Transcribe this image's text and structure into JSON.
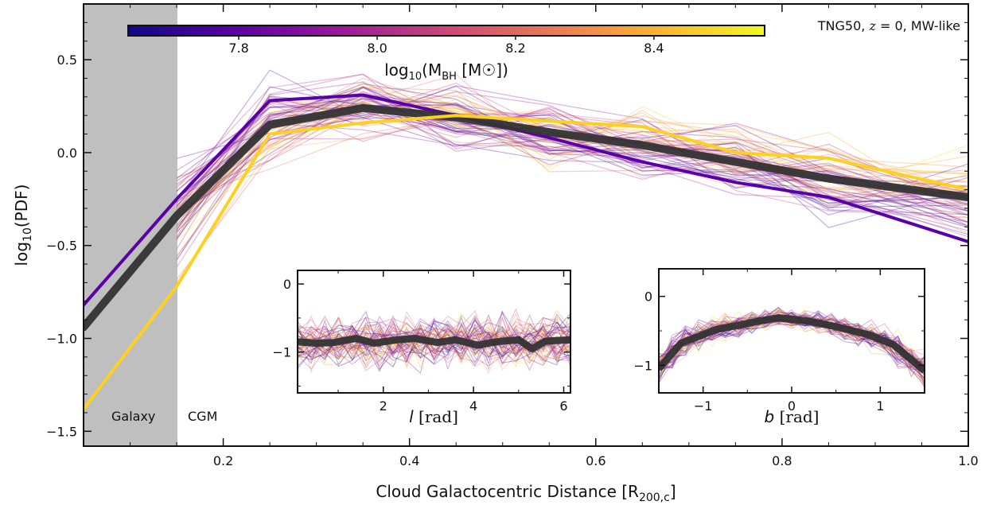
{
  "chart_data": {
    "main": {
      "type": "line",
      "xlabel": "Cloud Galactocentric Distance [R",
      "xlabel_sub": "200,c",
      "xlabel_end": "]",
      "ylabel": "log",
      "ylabel_sub": "10",
      "ylabel_end": "(PDF)",
      "xlim": [
        0.05,
        1.0
      ],
      "ylim": [
        -1.58,
        0.8
      ],
      "xticks": [
        0.2,
        0.4,
        0.6,
        0.8,
        1.0
      ],
      "xtick_labels": [
        "0.2",
        "0.4",
        "0.6",
        "0.8",
        "1.0"
      ],
      "yticks": [
        0.5,
        0.0,
        -0.5,
        -1.0,
        -1.5
      ],
      "ytick_labels": [
        "0.5",
        "0.0",
        "−0.5",
        "−1.0",
        "−1.5"
      ],
      "galaxy_region": [
        0.05,
        0.15
      ],
      "galaxy_label": "Galaxy",
      "cgm_label": "CGM",
      "annotation_prefix": "TNG50, ",
      "annotation_z": "z",
      "annotation_suffix": " = 0, MW-like",
      "series": [
        {
          "role": "low-mass-mean",
          "color": "#5a00a8",
          "x": [
            0.05,
            0.15,
            0.25,
            0.35,
            0.45,
            0.55,
            0.65,
            0.75,
            0.85,
            1.0
          ],
          "y": [
            -0.82,
            -0.25,
            0.28,
            0.31,
            0.2,
            0.08,
            -0.05,
            -0.16,
            -0.24,
            -0.48
          ]
        },
        {
          "role": "median",
          "color": "#333333",
          "x": [
            0.05,
            0.15,
            0.25,
            0.35,
            0.45,
            0.55,
            0.65,
            0.75,
            0.85,
            1.0
          ],
          "y": [
            -0.94,
            -0.34,
            0.15,
            0.24,
            0.19,
            0.11,
            0.04,
            -0.05,
            -0.14,
            -0.24
          ]
        },
        {
          "role": "high-mass-mean",
          "color": "#ffd020",
          "x": [
            0.05,
            0.15,
            0.25,
            0.35,
            0.45,
            0.55,
            0.65,
            0.75,
            0.85,
            1.0
          ],
          "y": [
            -1.38,
            -0.72,
            0.1,
            0.16,
            0.2,
            0.17,
            0.14,
            -0.0,
            -0.03,
            -0.2
          ]
        }
      ],
      "ensemble_x": [
        0.15,
        0.25,
        0.35,
        0.45,
        0.55,
        0.65,
        0.75,
        0.85,
        1.0
      ],
      "ensemble_base": [
        -0.34,
        0.15,
        0.24,
        0.19,
        0.11,
        0.04,
        -0.05,
        -0.14,
        -0.24
      ],
      "ensemble_spread": 0.28,
      "ensemble_count": 70
    },
    "colorbar": {
      "label": "log",
      "label_sub": "10",
      "label_mid": "(M",
      "label_msub": "BH",
      "label_end": " [M☉])",
      "range": [
        7.64,
        8.56
      ],
      "ticks": [
        7.8,
        8.0,
        8.2,
        8.4
      ],
      "tick_labels": [
        "7.8",
        "8.0",
        "8.2",
        "8.4"
      ],
      "colors": [
        "#0d0887",
        "#5c01a6",
        "#9c179e",
        "#cc4778",
        "#ed7953",
        "#fdb42f",
        "#f0f921"
      ]
    },
    "inset_l": {
      "type": "line",
      "xlabel": "l",
      "xlabel_unit": " [rad]",
      "xlim": [
        0.1,
        6.15
      ],
      "ylim": [
        -1.6,
        0.2
      ],
      "xticks": [
        2,
        4,
        6
      ],
      "xtick_labels": [
        "2",
        "4",
        "6"
      ],
      "yticks": [
        0,
        -1
      ],
      "ytick_labels": [
        "0",
        "−1"
      ],
      "median": {
        "x": [
          0.1,
          0.5,
          0.9,
          1.4,
          1.8,
          2.3,
          2.7,
          3.2,
          3.6,
          4.1,
          4.5,
          5.0,
          5.3,
          5.6,
          6.15
        ],
        "y": [
          -0.85,
          -0.87,
          -0.86,
          -0.8,
          -0.87,
          -0.82,
          -0.8,
          -0.86,
          -0.82,
          -0.9,
          -0.85,
          -0.82,
          -0.95,
          -0.84,
          -0.82
        ]
      },
      "ensemble_base": -0.85,
      "ensemble_spread": 0.55,
      "ensemble_count": 60
    },
    "inset_b": {
      "type": "line",
      "xlabel": "b",
      "xlabel_unit": " [rad]",
      "xlim": [
        -1.5,
        1.5
      ],
      "ylim": [
        -1.4,
        0.4
      ],
      "xticks": [
        -1,
        0,
        1
      ],
      "xtick_labels": [
        "−1",
        "0",
        "1"
      ],
      "yticks": [
        0,
        -1
      ],
      "ytick_labels": [
        "0",
        "−1"
      ],
      "median": {
        "x": [
          -1.5,
          -1.25,
          -0.85,
          -0.45,
          -0.15,
          0.2,
          0.5,
          0.85,
          1.15,
          1.5
        ],
        "y": [
          -1.05,
          -0.68,
          -0.48,
          -0.38,
          -0.31,
          -0.36,
          -0.44,
          -0.55,
          -0.7,
          -1.08
        ]
      },
      "ensemble_spread": 0.3,
      "ensemble_count": 60
    }
  }
}
